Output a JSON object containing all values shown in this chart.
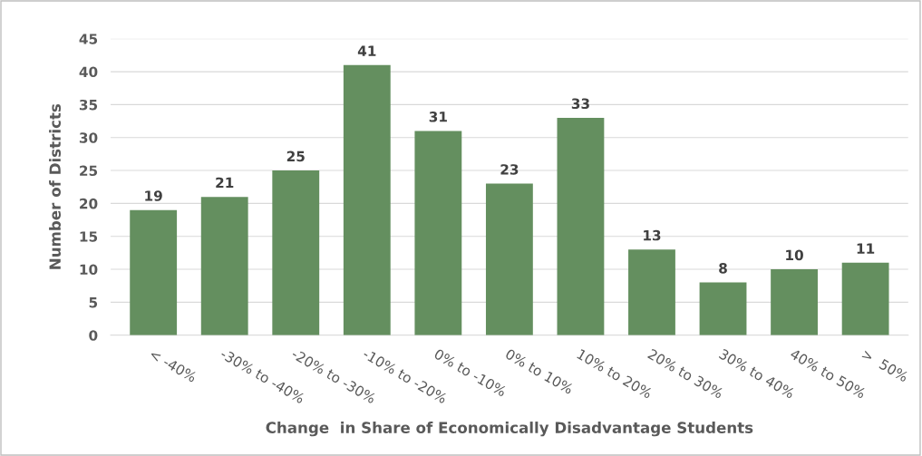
{
  "chart_data": {
    "type": "bar",
    "xlabel": "Change  in Share of Economically Disadvantage Students",
    "ylabel": "Number of Districts",
    "categories": [
      "< -40%",
      "-30% to -40%",
      "-20% to -30%",
      "-10% to -20%",
      "0% to -10%",
      "0% to 10%",
      "10% to 20%",
      "20% to 30%",
      "30% to 40%",
      "40% to 50%",
      ">  50%"
    ],
    "values": [
      19,
      21,
      25,
      41,
      31,
      23,
      33,
      13,
      8,
      10,
      11
    ],
    "color": "#648f5f",
    "ylim": [
      0,
      45
    ],
    "yticks": [
      0,
      5,
      10,
      15,
      20,
      25,
      30,
      35,
      40,
      45
    ],
    "grid": "y",
    "data_labels": true
  }
}
